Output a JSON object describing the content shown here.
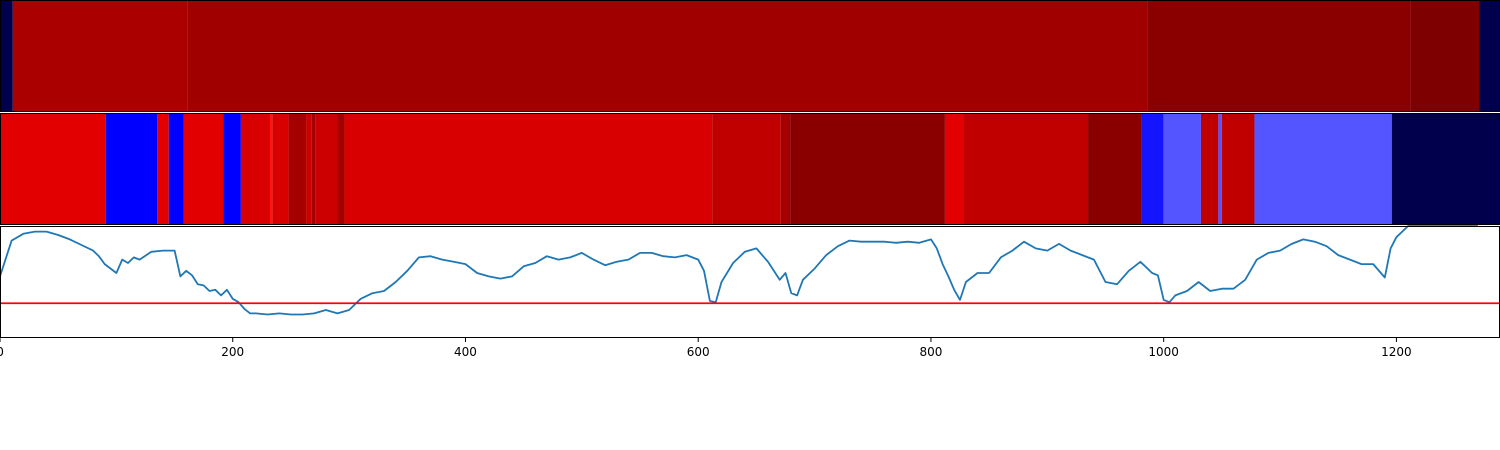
{
  "chart_data": [
    {
      "type": "heatmap",
      "xlim": [
        0,
        1289
      ],
      "colors": [
        "#00004c",
        "#aa0000",
        "#a00000",
        "#8a0000",
        "#7f0000",
        "#00004c"
      ],
      "segments": [
        [
          0,
          11
        ],
        [
          11,
          161
        ],
        [
          161,
          986
        ],
        [
          986,
          1212
        ],
        [
          1212,
          1271
        ],
        [
          1271,
          1289
        ]
      ]
    },
    {
      "type": "heatmap",
      "xlim": [
        0,
        1289
      ],
      "colors": [
        "#e20000",
        "#0000ff",
        "#e20000",
        "#0000ff",
        "#e20000",
        "#0000ff",
        "#d80000",
        "#ff1414",
        "#d80000",
        "#a40000",
        "#cc0000",
        "#a40000",
        "#cc0000",
        "#a40000",
        "#d80000",
        "#c00000",
        "#a40000",
        "#8a0000",
        "#e20000",
        "#c00000",
        "#8a0000",
        "#1414ff",
        "#5555ff",
        "#c00000",
        "#5555ff",
        "#c00000",
        "#5555ff",
        "#00004c"
      ],
      "segments": [
        [
          0,
          91
        ],
        [
          91,
          135
        ],
        [
          135,
          145
        ],
        [
          145,
          158
        ],
        [
          158,
          192
        ],
        [
          192,
          207
        ],
        [
          207,
          232
        ],
        [
          232,
          234
        ],
        [
          234,
          248
        ],
        [
          248,
          263
        ],
        [
          263,
          268
        ],
        [
          268,
          271
        ],
        [
          271,
          290
        ],
        [
          290,
          296
        ],
        [
          296,
          612
        ],
        [
          612,
          671
        ],
        [
          671,
          679
        ],
        [
          679,
          812
        ],
        [
          812,
          828
        ],
        [
          828,
          935
        ],
        [
          935,
          981
        ],
        [
          981,
          1000
        ],
        [
          1000,
          1032
        ],
        [
          1032,
          1047
        ],
        [
          1047,
          1050
        ],
        [
          1050,
          1078
        ],
        [
          1078,
          1196
        ],
        [
          1196,
          1289
        ]
      ]
    },
    {
      "type": "line",
      "xlim": [
        0,
        1289
      ],
      "ylim": [
        0,
        100
      ],
      "x_ticks": [
        0,
        200,
        400,
        600,
        800,
        1000,
        1200
      ],
      "threshold": 31,
      "line_color": "#1f77b4",
      "threshold_color": "#ff0000",
      "x": [
        0,
        10,
        20,
        30,
        40,
        50,
        60,
        70,
        80,
        85,
        90,
        95,
        100,
        105,
        110,
        115,
        120,
        130,
        140,
        150,
        155,
        160,
        165,
        170,
        175,
        180,
        185,
        190,
        195,
        200,
        205,
        210,
        215,
        220,
        230,
        240,
        250,
        260,
        270,
        280,
        290,
        300,
        310,
        320,
        330,
        340,
        350,
        360,
        370,
        380,
        390,
        400,
        410,
        420,
        430,
        440,
        450,
        460,
        470,
        480,
        490,
        500,
        510,
        520,
        530,
        540,
        550,
        560,
        570,
        580,
        590,
        600,
        605,
        610,
        615,
        620,
        630,
        640,
        650,
        660,
        670,
        675,
        680,
        685,
        690,
        700,
        710,
        720,
        730,
        740,
        750,
        760,
        770,
        780,
        790,
        800,
        805,
        810,
        815,
        820,
        825,
        830,
        840,
        850,
        860,
        870,
        880,
        890,
        900,
        910,
        920,
        930,
        940,
        950,
        960,
        970,
        980,
        990,
        995,
        1000,
        1005,
        1010,
        1020,
        1030,
        1040,
        1050,
        1060,
        1070,
        1080,
        1090,
        1100,
        1110,
        1120,
        1130,
        1140,
        1150,
        1160,
        1170,
        1180,
        1190,
        1195,
        1200,
        1210,
        1220,
        1230,
        1240,
        1250,
        1260,
        1270
      ],
      "y": [
        55,
        87,
        93,
        95,
        95,
        92,
        88,
        83,
        78,
        73,
        66,
        62,
        58,
        70,
        67,
        72,
        70,
        77,
        78,
        78,
        55,
        60,
        56,
        48,
        47,
        42,
        43,
        38,
        43,
        35,
        32,
        26,
        22,
        22,
        21,
        22,
        21,
        21,
        22,
        25,
        22,
        25,
        35,
        40,
        42,
        50,
        60,
        72,
        73,
        70,
        68,
        66,
        58,
        55,
        53,
        55,
        64,
        67,
        73,
        70,
        72,
        76,
        70,
        65,
        68,
        70,
        76,
        76,
        73,
        72,
        74,
        70,
        60,
        33,
        32,
        50,
        67,
        77,
        80,
        68,
        52,
        58,
        40,
        38,
        52,
        62,
        74,
        82,
        87,
        86,
        86,
        86,
        85,
        86,
        85,
        88,
        80,
        66,
        55,
        43,
        34,
        50,
        58,
        58,
        72,
        78,
        86,
        80,
        78,
        84,
        78,
        74,
        70,
        50,
        48,
        60,
        68,
        58,
        56,
        34,
        32,
        38,
        42,
        50,
        42,
        44,
        44,
        52,
        70,
        76,
        78,
        84,
        88,
        86,
        82,
        74,
        70,
        66,
        66,
        54,
        80,
        90,
        100,
        100,
        100,
        100,
        100,
        100,
        100
      ]
    }
  ]
}
